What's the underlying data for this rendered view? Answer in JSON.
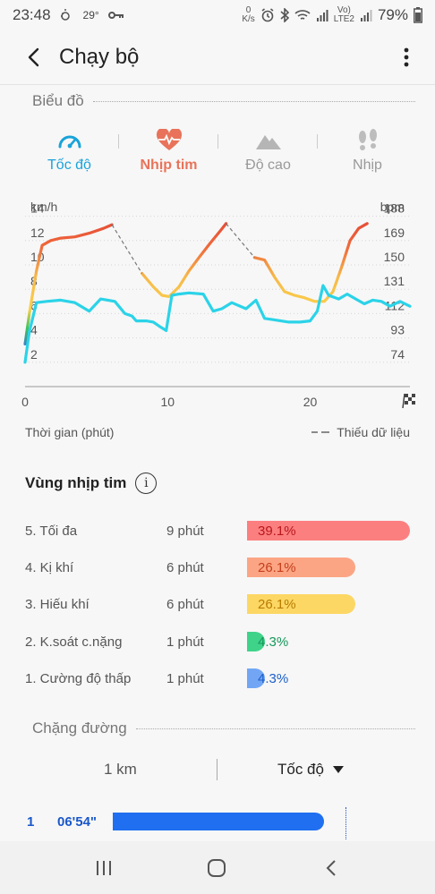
{
  "status_bar": {
    "time": "23:48",
    "temperature": "29°",
    "net_speed_top": "0",
    "net_speed_unit": "K/s",
    "volte_top": "Vo)",
    "volte_bottom": "LTE2",
    "battery": "79%"
  },
  "app_bar": {
    "title": "Chạy bộ"
  },
  "chart_section": {
    "header": "Biểu đồ",
    "tabs": [
      {
        "label": "Tốc độ",
        "icon": "speedometer-icon",
        "color": "#1aa3d9",
        "selected": true
      },
      {
        "label": "Nhịp tim",
        "icon": "heart-rate-icon",
        "color": "#e8735a",
        "selected": true
      },
      {
        "label": "Độ cao",
        "icon": "mountain-icon",
        "color": "#aaaaaa",
        "selected": false
      },
      {
        "label": "Nhịp",
        "icon": "footsteps-icon",
        "color": "#aaaaaa",
        "selected": false
      }
    ],
    "xlabel": "Thời gian (phút)",
    "missing_data": "Thiếu dữ liệu"
  },
  "chart_data": {
    "type": "line",
    "title": "",
    "xlabel": "Thời gian (phút)",
    "xlim": [
      0,
      27
    ],
    "x_ticks": [
      "0",
      "10",
      "20"
    ],
    "x_tick_values": [
      0,
      10,
      20
    ],
    "left_axis": {
      "unit": "km/h",
      "ticks": [
        "2",
        "4",
        "6",
        "8",
        "10",
        "12",
        "14"
      ],
      "tick_values": [
        2,
        4,
        6,
        8,
        10,
        12,
        14
      ],
      "ylim": [
        0,
        15
      ]
    },
    "right_axis": {
      "unit": "bpm",
      "ticks": [
        "74",
        "93",
        "112",
        "131",
        "150",
        "169",
        "188"
      ]
    },
    "series": [
      {
        "axis": "left",
        "color": "#2bd3e8",
        "x": [
          0,
          0.3,
          0.8,
          1.5,
          2.5,
          3.5,
          4.5,
          5.3,
          6.3,
          7,
          7.5,
          7.8,
          8.5,
          9,
          9.5,
          9.9,
          10.3,
          10.8,
          11.5,
          12.5,
          13.2,
          13.8,
          14.5,
          15.5,
          16.2,
          16.8,
          17.4,
          18.5,
          19.3,
          20,
          20.5,
          20.9,
          21.3,
          22,
          22.6,
          23.2,
          23.8,
          24.4,
          25,
          25.6,
          26.3,
          27
        ],
        "y": [
          2.0,
          4.5,
          6.9,
          7.0,
          7.1,
          6.9,
          6.2,
          7.2,
          7.0,
          6.0,
          5.8,
          5.4,
          5.4,
          5.3,
          4.9,
          4.6,
          7.5,
          7.6,
          7.7,
          7.6,
          6.2,
          6.4,
          6.9,
          6.4,
          7.1,
          5.6,
          5.5,
          5.3,
          5.3,
          5.4,
          6.2,
          8.3,
          7.5,
          7.2,
          7.6,
          7.2,
          6.8,
          7.1,
          7.0,
          6.6,
          7.0,
          6.6
        ]
      }
    ],
    "heart_rate_line": {
      "axis": "left",
      "x": [
        0,
        0.3,
        0.8,
        1.2,
        1.8,
        2.5,
        3.5,
        4.5,
        5.5,
        6.1
      ],
      "y": [
        3.5,
        6.0,
        9.5,
        11.6,
        12.0,
        12.2,
        12.3,
        12.6,
        13.0,
        13.3
      ]
    },
    "heart_rate_line_2": {
      "axis": "left",
      "x": [
        8.2,
        9,
        9.6,
        10.1,
        10.8,
        11.5,
        12.2,
        13,
        13.7,
        14.1
      ],
      "y": [
        9.3,
        8.2,
        7.5,
        7.4,
        8.2,
        9.5,
        10.6,
        11.8,
        12.8,
        13.4
      ]
    },
    "heart_rate_line_3": {
      "axis": "left",
      "x": [
        16.1,
        16.8,
        17.5,
        18.2,
        18.9,
        19.6,
        20.3,
        21,
        21.6,
        22.2,
        22.8,
        23.4,
        24
      ],
      "y": [
        10.6,
        10.4,
        9.0,
        7.8,
        7.5,
        7.3,
        7.0,
        7.0,
        7.8,
        9.8,
        12.0,
        13.0,
        13.4
      ]
    },
    "heart_rate_gaps": [
      [
        6.1,
        13.3,
        8.2,
        9.3
      ],
      [
        14.1,
        13.4,
        16.1,
        10.6
      ]
    ],
    "grid": true,
    "legend": "none"
  },
  "hr_zones": {
    "title": "Vùng nhịp tim",
    "zones": [
      {
        "name": "5. Tối đa",
        "time": "9 phút",
        "percent_label": "39.1%",
        "fraction": 0.391,
        "bar_color": "#fc7f80",
        "text_color": "#b8181b"
      },
      {
        "name": "4. Kị khí",
        "time": "6 phút",
        "percent_label": "26.1%",
        "fraction": 0.261,
        "bar_color": "#fca584",
        "text_color": "#c43f1c"
      },
      {
        "name": "3. Hiếu khí",
        "time": "6 phút",
        "percent_label": "26.1%",
        "fraction": 0.261,
        "bar_color": "#fdd764",
        "text_color": "#b87c00"
      },
      {
        "name": "2. K.soát c.nặng",
        "time": "1 phút",
        "percent_label": "4.3%",
        "fraction": 0.043,
        "bar_color": "#3fd38a",
        "text_color": "#16975a"
      },
      {
        "name": "1. Cường độ thấp",
        "time": "1 phút",
        "percent_label": "4.3%",
        "fraction": 0.043,
        "bar_color": "#72a6f5",
        "text_color": "#1d5fc8"
      }
    ]
  },
  "splits": {
    "header": "Chặng đường",
    "distance_unit": "1 km",
    "metric_dropdown": "Tốc độ",
    "rows": [
      {
        "index": "1",
        "pace": "06'54\"",
        "fraction": 0.98
      }
    ]
  },
  "nav_bar": {
    "recent": "recent-apps-icon",
    "home": "home-icon",
    "back": "back-icon"
  }
}
